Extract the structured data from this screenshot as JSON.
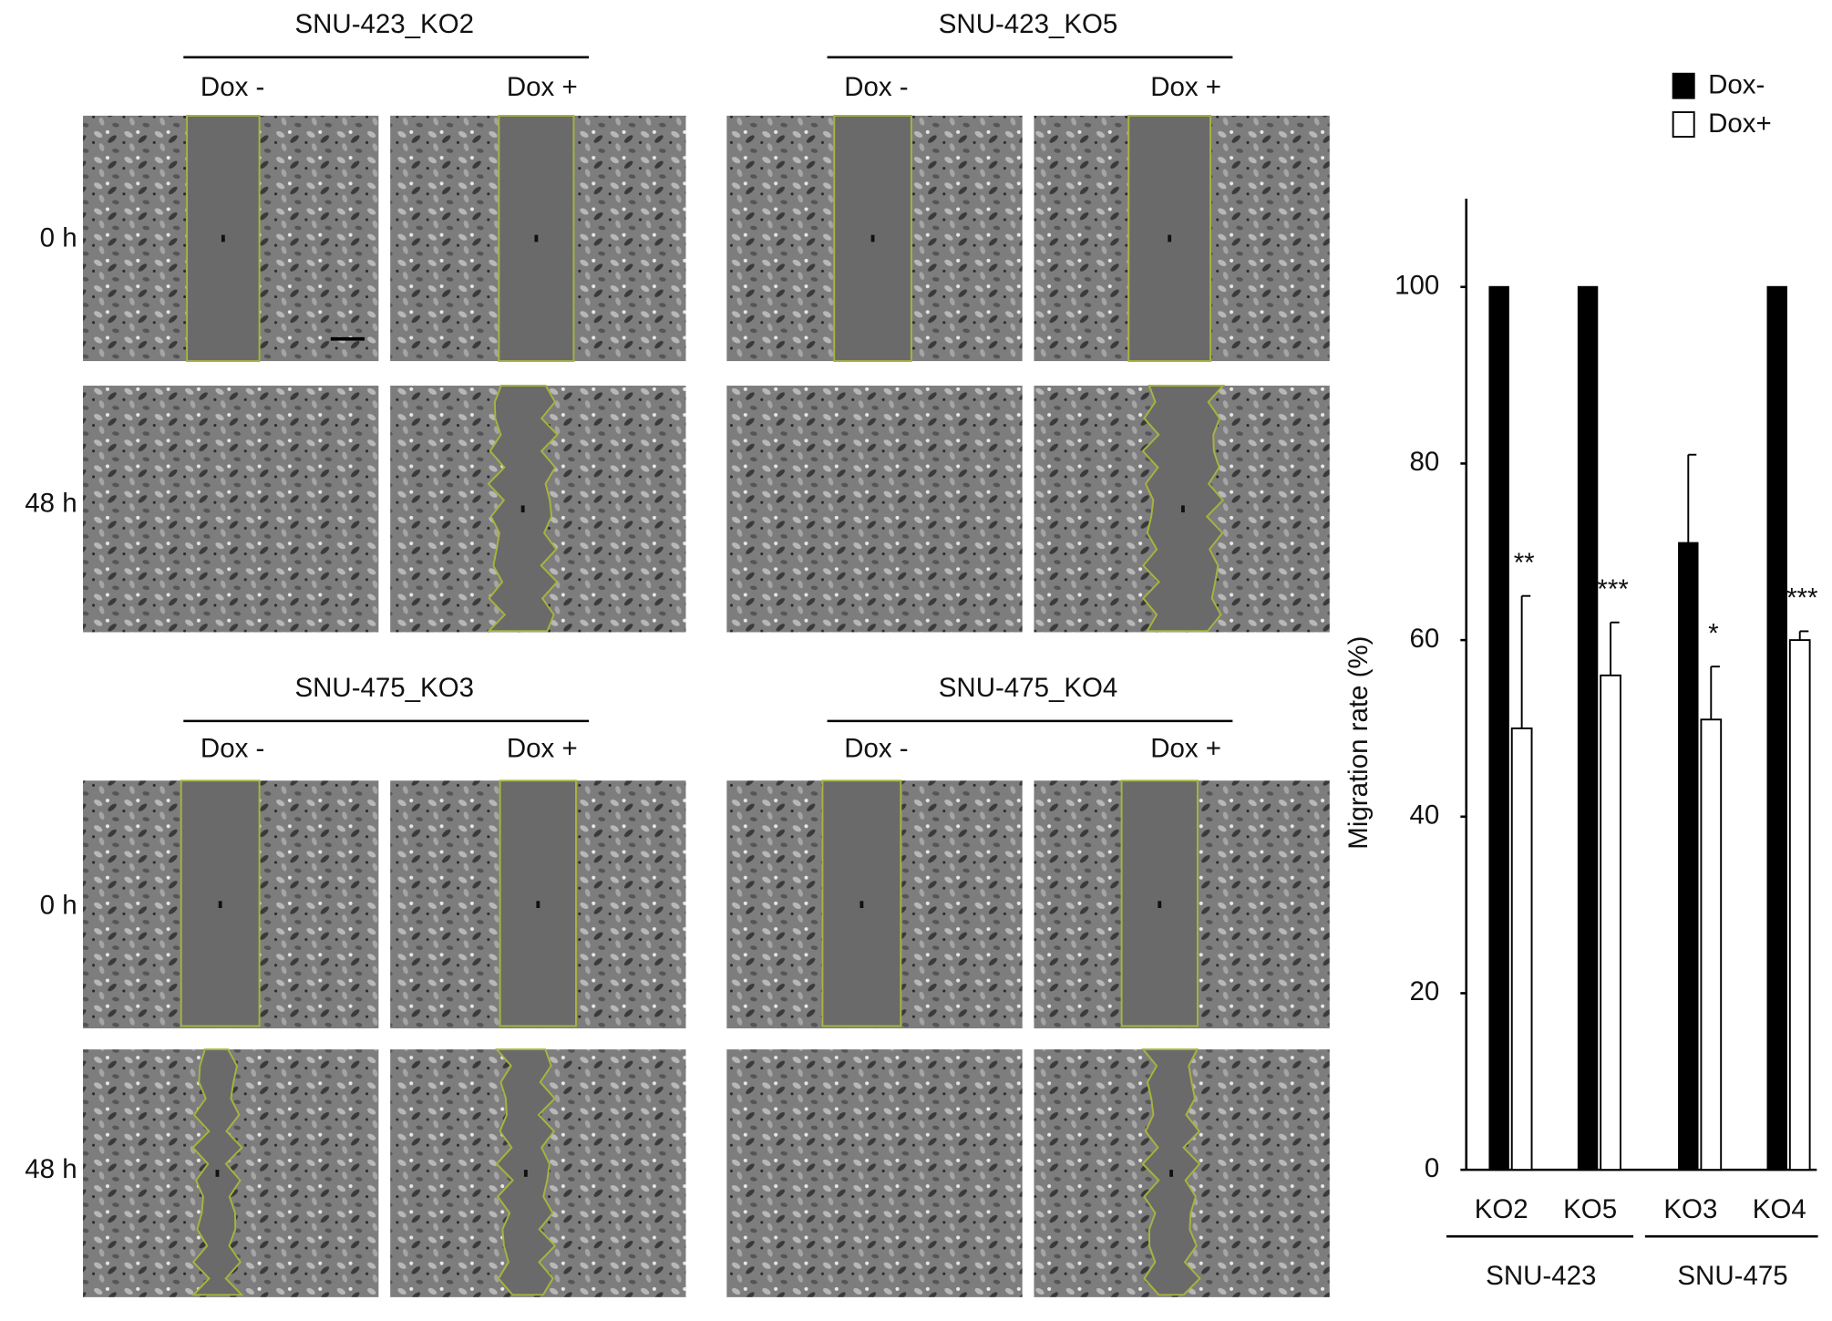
{
  "blocks": [
    {
      "rows": [
        "0 h",
        "48 h"
      ],
      "panels": [
        {
          "title": "SNU-423_KO2",
          "columns": [
            "Dox -",
            "Dox +"
          ]
        },
        {
          "title": "SNU-423_KO5",
          "columns": [
            "Dox -",
            "Dox +"
          ]
        }
      ]
    },
    {
      "rows": [
        "0 h",
        "48 h"
      ],
      "panels": [
        {
          "title": "SNU-475_KO3",
          "columns": [
            "Dox -",
            "Dox +"
          ]
        },
        {
          "title": "SNU-475_KO4",
          "columns": [
            "Dox -",
            "Dox +"
          ]
        }
      ]
    }
  ],
  "chart_data": {
    "type": "bar",
    "ylabel": "Migration rate (%)",
    "categories": [
      "KO2",
      "KO5",
      "KO3",
      "KO4"
    ],
    "groups": [
      "SNU-423",
      "SNU-475"
    ],
    "series": [
      {
        "name": "Dox-",
        "color": "#000000",
        "values": [
          100,
          100,
          71,
          100
        ],
        "errors": [
          0,
          0,
          10,
          0
        ]
      },
      {
        "name": "Dox+",
        "color": "#ffffff",
        "values": [
          50,
          56,
          51,
          60
        ],
        "errors": [
          15,
          6,
          6,
          1
        ],
        "annotations": [
          "**",
          "***",
          "*",
          "***"
        ]
      }
    ],
    "ylim": [
      0,
      110
    ],
    "yticks": [
      0,
      20,
      40,
      60,
      80,
      100
    ]
  }
}
